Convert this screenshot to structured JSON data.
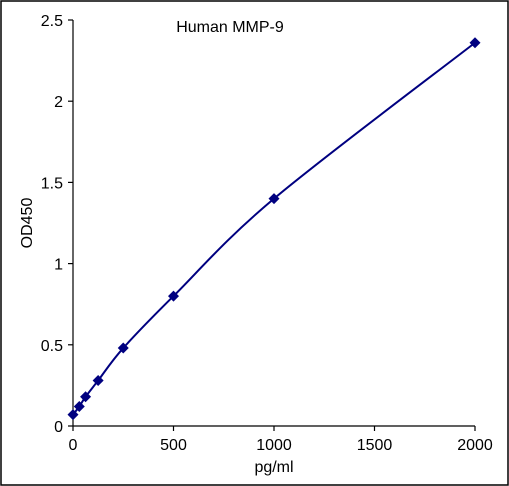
{
  "chart_data": {
    "type": "line",
    "title": "Human MMP-9",
    "xlabel": "pg/ml",
    "ylabel": "OD450",
    "xlim": [
      0,
      2000
    ],
    "ylim": [
      0,
      2.5
    ],
    "x_ticks": [
      "0",
      "500",
      "1000",
      "1500",
      "2000"
    ],
    "y_ticks": [
      "0",
      "0.5",
      "1",
      "1.5",
      "2",
      "2.5"
    ],
    "grid": false,
    "legend": "none",
    "series": [
      {
        "x": [
          0,
          31.25,
          62.5,
          125,
          250,
          500,
          1000,
          2000
        ],
        "y": [
          0.07,
          0.12,
          0.18,
          0.28,
          0.48,
          0.8,
          1.4,
          2.36
        ],
        "marker": "diamond",
        "color": "#000080"
      }
    ]
  }
}
